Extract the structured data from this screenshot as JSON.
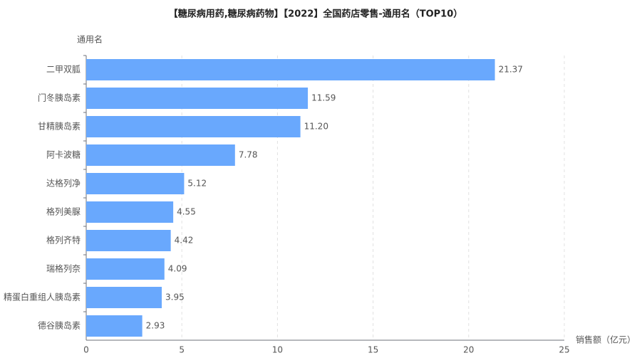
{
  "chart_data": {
    "type": "hbar",
    "title": "【糖尿病用药,糖尿病药物】【2022】全国药店零售-通用名（TOP10）",
    "y_axis_label": "通用名",
    "x_axis_label": "销售额（亿元）",
    "categories": [
      "二甲双胍",
      "门冬胰岛素",
      "甘精胰岛素",
      "阿卡波糖",
      "达格列净",
      "格列美脲",
      "格列齐特",
      "瑞格列奈",
      "精蛋白重组人胰岛素",
      "德谷胰岛素"
    ],
    "values": [
      21.37,
      11.59,
      11.2,
      7.78,
      5.12,
      4.55,
      4.42,
      4.09,
      3.95,
      2.93
    ],
    "value_labels": [
      "21.37",
      "11.59",
      "11.20",
      "7.78",
      "5.12",
      "4.55",
      "4.42",
      "4.09",
      "3.95",
      "2.93"
    ],
    "color": "#69a8fd",
    "xlim": [
      0,
      25
    ],
    "xticks": [
      0,
      5,
      10,
      15,
      20,
      25
    ],
    "grid": true
  }
}
